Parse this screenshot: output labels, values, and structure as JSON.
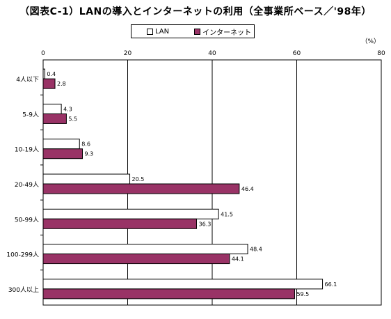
{
  "chart_data": {
    "type": "bar",
    "orientation": "horizontal",
    "title": "（図表C-1）LANの導入とインターネットの利用（全事業所ベース／'98年）",
    "unit_label": "（%）",
    "categories": [
      "4人以下",
      "5-9人",
      "10-19人",
      "20-49人",
      "50-99人",
      "100-299人",
      "300人以上"
    ],
    "series": [
      {
        "name": "LAN",
        "color": "#ffffff",
        "values": [
          0.4,
          4.3,
          8.6,
          20.5,
          41.5,
          48.4,
          66.1
        ]
      },
      {
        "name": "インターネット",
        "color": "#993366",
        "values": [
          2.8,
          5.5,
          9.3,
          46.4,
          36.3,
          44.1,
          59.5
        ]
      }
    ],
    "xlim": [
      0,
      80
    ],
    "xticks": [
      0,
      20,
      40,
      60,
      80
    ],
    "grid": "vertical",
    "legend_position": "top"
  }
}
